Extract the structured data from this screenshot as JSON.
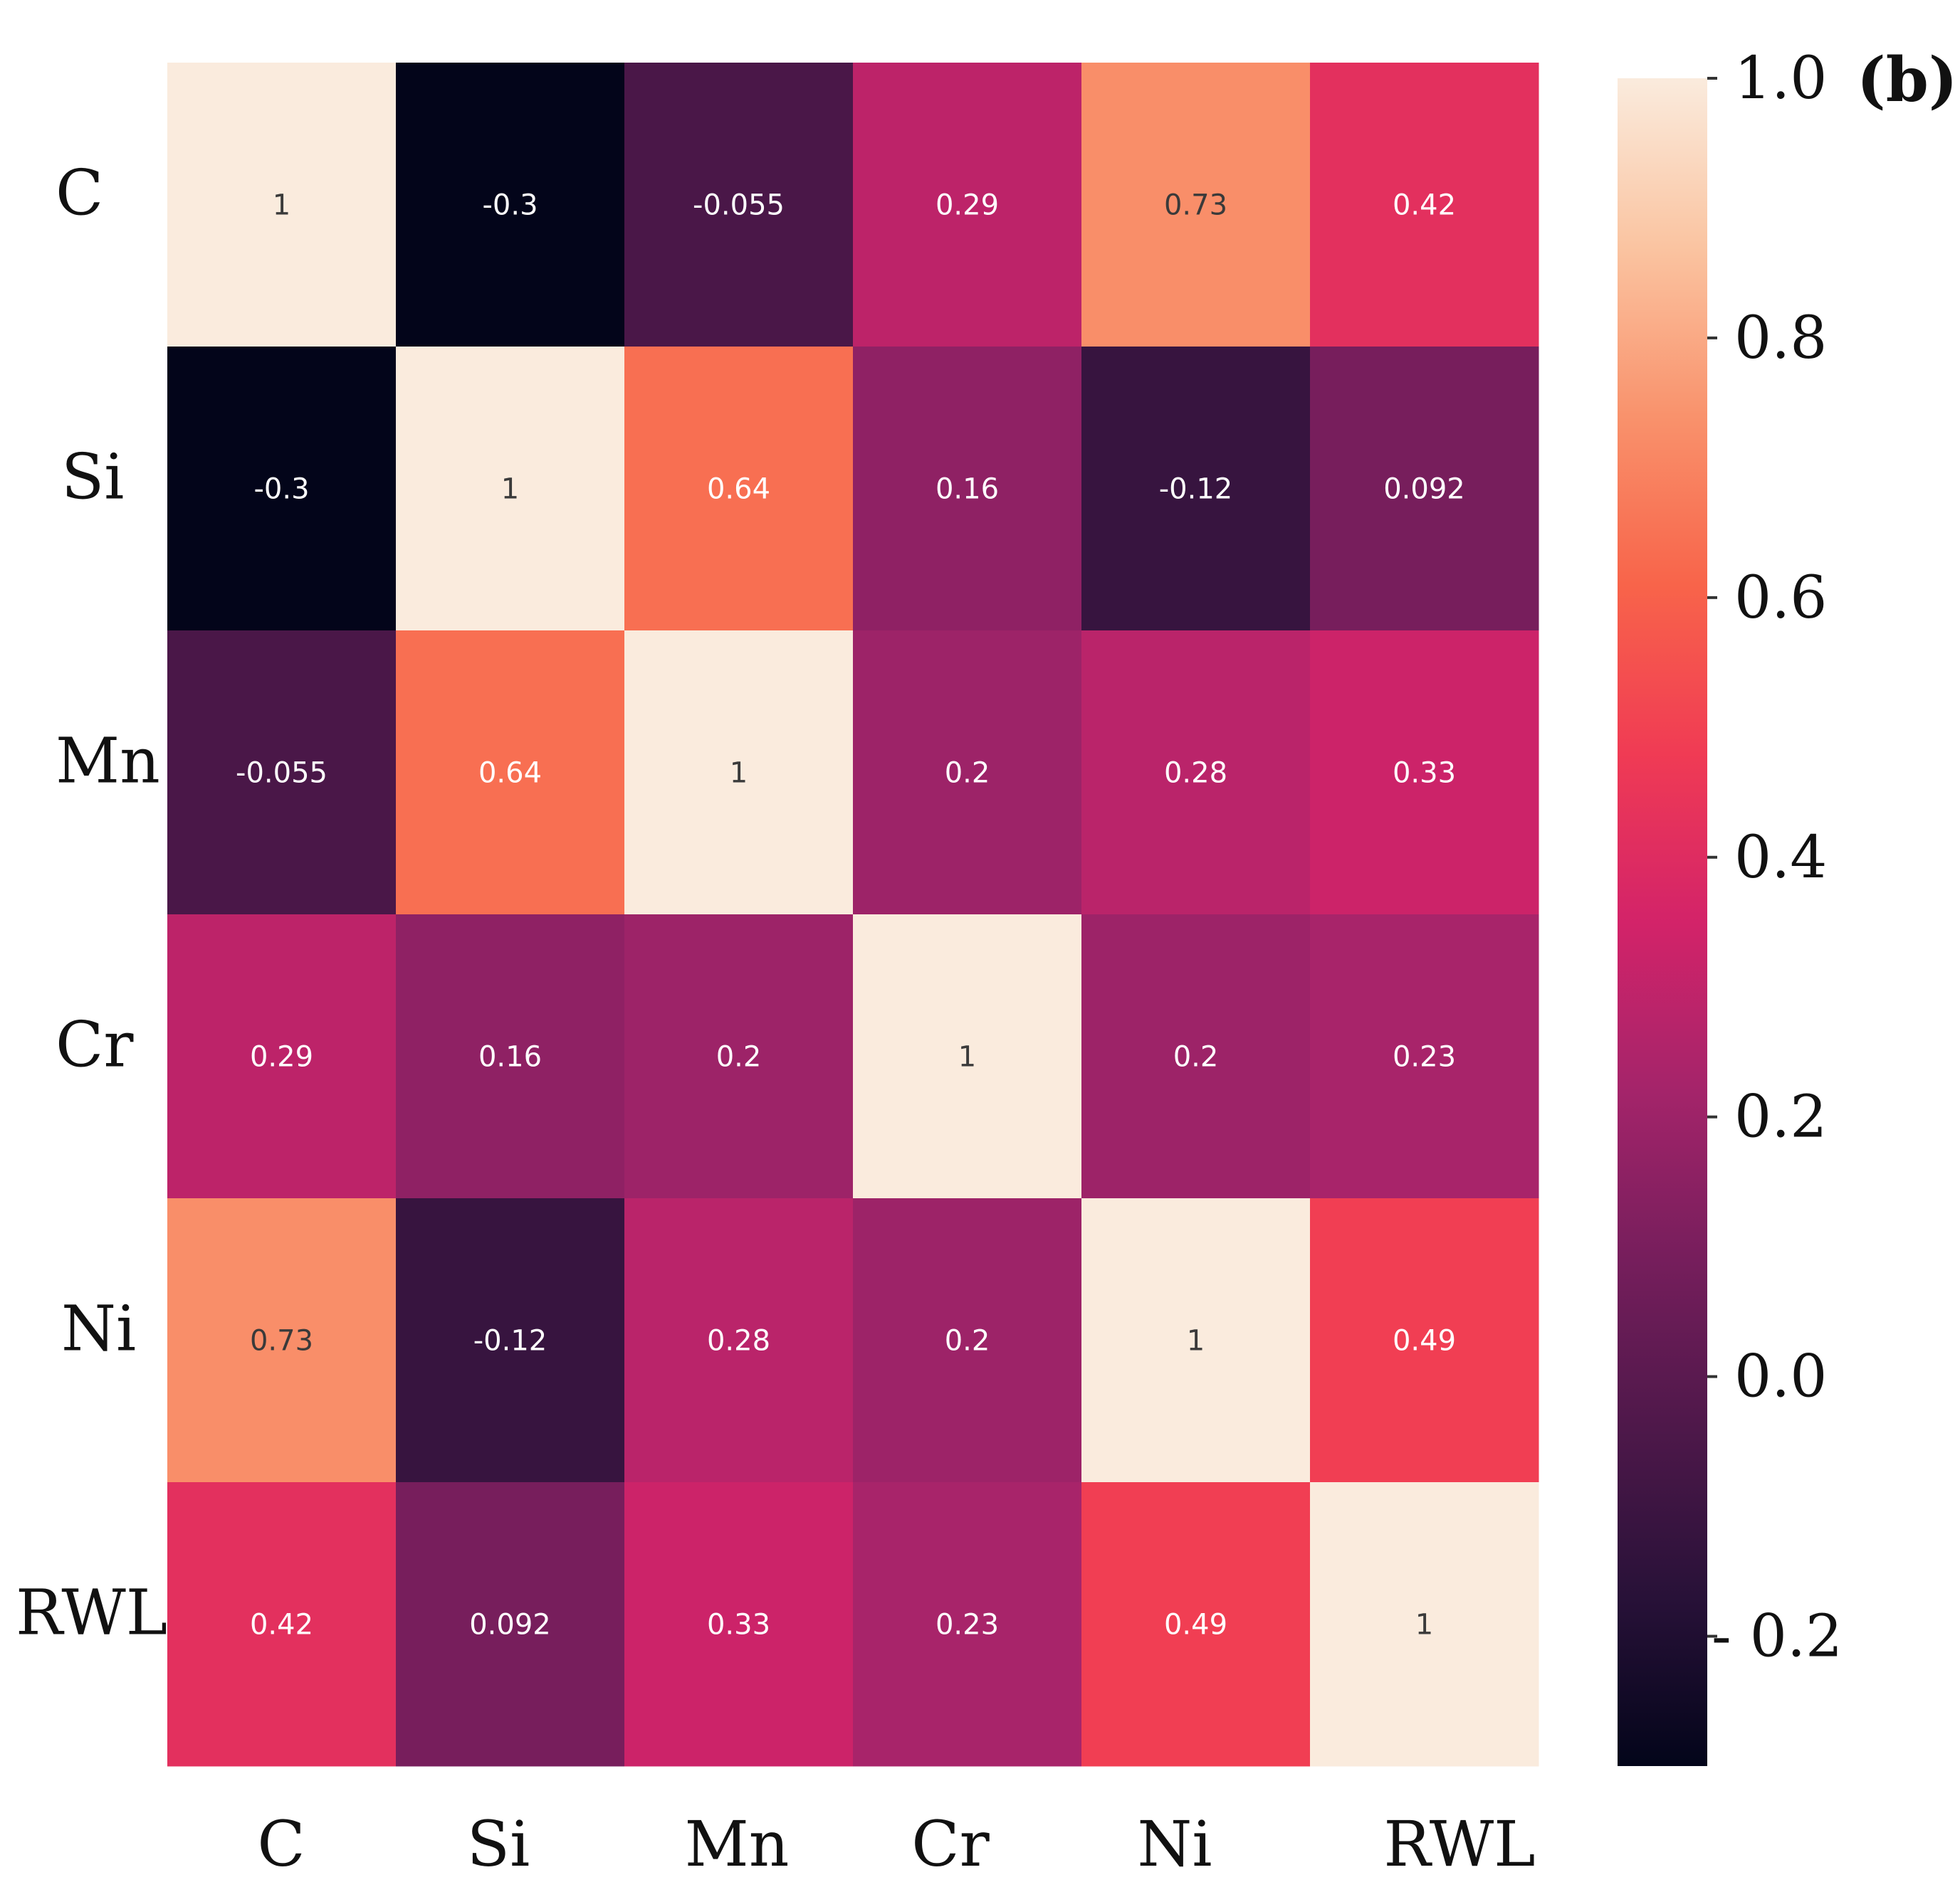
{
  "panel_label": "(b)",
  "chart_data": {
    "type": "heatmap",
    "rows": [
      "C",
      "Si",
      "Mn",
      "Cr",
      "Ni",
      "RWL"
    ],
    "columns": [
      "C",
      "Si",
      "Mn",
      "Cr",
      "Ni",
      "RWL"
    ],
    "values": [
      [
        1,
        -0.3,
        -0.055,
        0.29,
        0.73,
        0.42
      ],
      [
        -0.3,
        1,
        0.64,
        0.16,
        -0.12,
        0.092
      ],
      [
        -0.055,
        0.64,
        1,
        0.2,
        0.28,
        0.33
      ],
      [
        0.29,
        0.16,
        0.2,
        1,
        0.2,
        0.23
      ],
      [
        0.73,
        -0.12,
        0.28,
        0.2,
        1,
        0.49
      ],
      [
        0.42,
        0.092,
        0.33,
        0.23,
        0.49,
        1
      ]
    ],
    "cell_labels": [
      [
        "1",
        "-0.3",
        "-0.055",
        "0.29",
        "0.73",
        "0.42"
      ],
      [
        "-0.3",
        "1",
        "0.64",
        "0.16",
        "-0.12",
        "0.092"
      ],
      [
        "-0.055",
        "0.64",
        "1",
        "0.2",
        "0.28",
        "0.33"
      ],
      [
        "0.29",
        "0.16",
        "0.2",
        "1",
        "0.2",
        "0.23"
      ],
      [
        "0.73",
        "-0.12",
        "0.28",
        "0.2",
        "1",
        "0.49"
      ],
      [
        "0.42",
        "0.092",
        "0.33",
        "0.23",
        "0.49",
        "1"
      ]
    ],
    "colorbar": {
      "range": [
        -0.3,
        1.0
      ],
      "tick_values": [
        1.0,
        0.8,
        0.6,
        0.4,
        0.2,
        0.0,
        -0.2
      ],
      "tick_labels": [
        "1.0",
        "0.8",
        "0.6",
        "0.4",
        "0.2",
        "0.0",
        "- 0.2"
      ],
      "colormap": "rocket"
    }
  }
}
